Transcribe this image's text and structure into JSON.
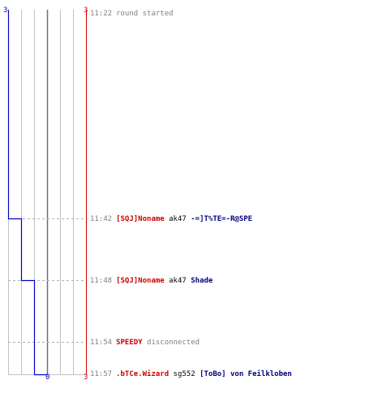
{
  "scoreboard": {
    "blue_score_top": "3",
    "red_score_top": "3",
    "blue_score_bottom": "0",
    "red_score_bottom": "3",
    "blue_color": "#0000cc",
    "red_color": "#cc0000"
  },
  "events": [
    {
      "time": "11:22",
      "type": "info",
      "text": "round started"
    },
    {
      "time": "11:42",
      "type": "kill",
      "killer": "[SQJ]Noname",
      "weapon": "ak47",
      "victim": "-=]T%TE=-R@SPE"
    },
    {
      "time": "11:48",
      "type": "kill",
      "killer": "[SQJ]Noname",
      "weapon": "ak47",
      "victim": "Shade"
    },
    {
      "time": "11:54",
      "type": "disconnect",
      "player": "SPEEDY",
      "text": "disconnected"
    },
    {
      "time": "11:57",
      "type": "kill",
      "killer": ".bTCe.Wizard",
      "weapon": "sg552",
      "victim": "[ToBo] von Feilkloben"
    }
  ]
}
